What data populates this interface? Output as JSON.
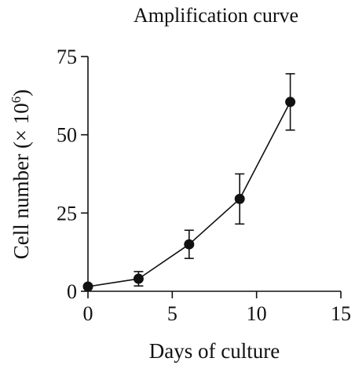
{
  "chart_data": {
    "type": "line",
    "title": "Amplification curve",
    "xlabel": "Days of culture",
    "ylabel_main": "Cell number (× 10",
    "ylabel_sup": "6",
    "ylabel_end": ")",
    "xlim": [
      0,
      15
    ],
    "ylim": [
      0,
      75
    ],
    "xticks": [
      0,
      5,
      10,
      15
    ],
    "yticks": [
      0,
      25,
      50,
      75
    ],
    "grid": false,
    "series": [
      {
        "x": [
          0,
          3,
          6,
          9,
          12
        ],
        "y": [
          1.5,
          4.0,
          15.0,
          29.5,
          60.5
        ],
        "err": [
          0.5,
          2.3,
          4.5,
          8.0,
          9.0
        ]
      }
    ],
    "colors": {
      "ink": "#111111"
    }
  }
}
